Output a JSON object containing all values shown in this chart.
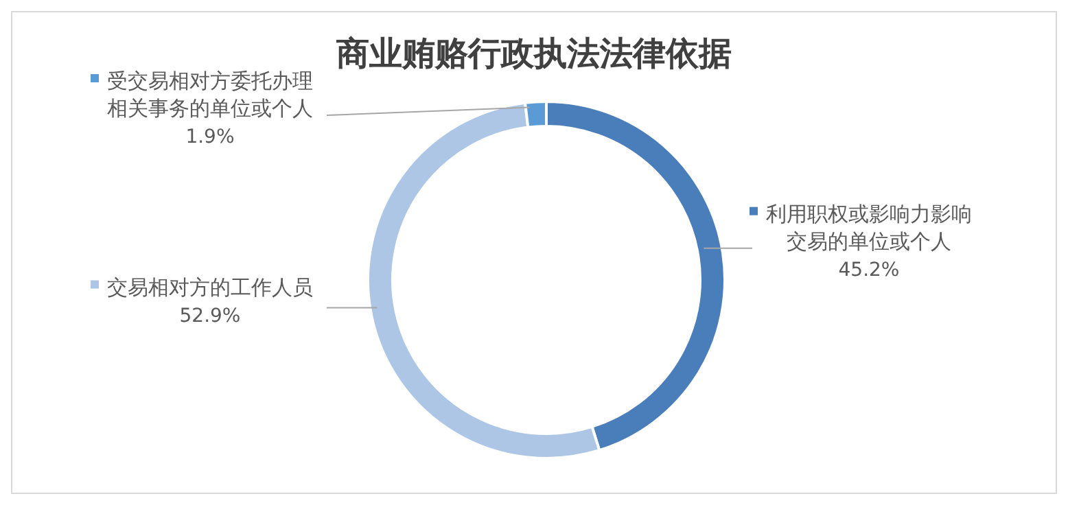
{
  "chart_data": {
    "type": "donut",
    "title": "商业贿赂行政执法法律依据",
    "categories": [
      "利用职权或影响力影响交易的单位或个人",
      "交易相对方的工作人员",
      "受交易相对方委托办理相关事务的单位或个人"
    ],
    "values": [
      45.2,
      52.9,
      1.9
    ],
    "value_labels": [
      "45.2%",
      "52.9%",
      "1.9%"
    ],
    "colors": [
      "#4a7ebb",
      "#adc6e5",
      "#5b9bd5"
    ],
    "legend": "top"
  }
}
